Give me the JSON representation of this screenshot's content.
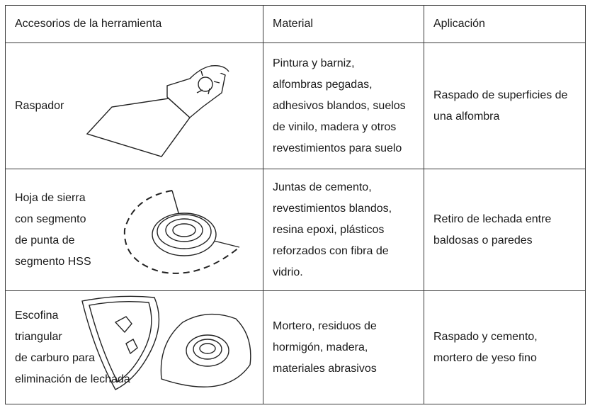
{
  "table": {
    "headers": [
      "Accesorios de la herramienta",
      "Material",
      "Aplicación"
    ],
    "rows": [
      [
        [
          "Raspador"
        ],
        [
          "Pintura y barniz,",
          "alfombras pegadas,",
          "adhesivos blandos, suelos",
          "de vinilo, madera y otros",
          "revestimientos para suelo"
        ],
        [
          "Raspado de superficies de",
          "una alfombra"
        ]
      ],
      [
        [
          "Hoja de sierra",
          "con segmento",
          "de punta de",
          "segmento HSS"
        ],
        [
          "Juntas de cemento,",
          "revestimientos blandos,",
          "resina epoxi, plásticos",
          "reforzados con fibra de",
          "vidrio."
        ],
        [
          "Retiro de lechada entre",
          "baldosas o paredes"
        ]
      ],
      [
        [
          "Escofina",
          "triangular",
          "de carburo para",
          "eliminación de lechada"
        ],
        [
          "Mortero, residuos de",
          "hormigón, madera,",
          "materiales abrasivos"
        ],
        [
          "Raspado y cemento,",
          "mortero de yeso fino"
        ]
      ]
    ]
  }
}
